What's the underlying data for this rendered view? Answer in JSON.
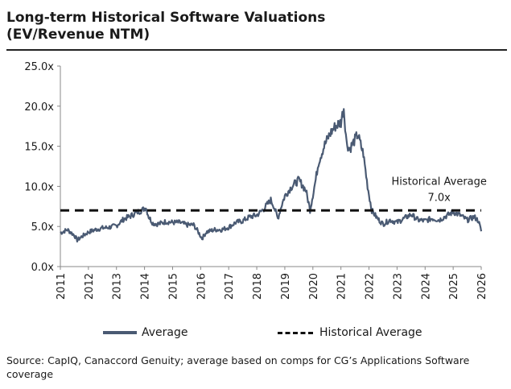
{
  "title_line1": "Long-term Historical Software Valuations",
  "title_line2": "(EV/Revenue NTM)",
  "source_text": "Source: CapIQ, Canaccord Genuity; average based on comps for CG’s Applications Software coverage",
  "chart_data": {
    "type": "line",
    "ylim": [
      0,
      25
    ],
    "xlim": [
      2011,
      2026
    ],
    "y_ticks": [
      {
        "value": 0,
        "label": "0.0x"
      },
      {
        "value": 5,
        "label": "5.0x"
      },
      {
        "value": 10,
        "label": "10.0x"
      },
      {
        "value": 15,
        "label": "15.0x"
      },
      {
        "value": 20,
        "label": "20.0x"
      },
      {
        "value": 25,
        "label": "25.0x"
      }
    ],
    "x_ticks": [
      "2011",
      "2012",
      "2013",
      "2014",
      "2015",
      "2016",
      "2017",
      "2018",
      "2019",
      "2020",
      "2021",
      "2022",
      "2023",
      "2024",
      "2025",
      "2026"
    ],
    "series": [
      {
        "name": "Average",
        "color": "#4a5a73",
        "x": [
          2011.0,
          2011.25,
          2011.5,
          2011.6,
          2011.75,
          2012.0,
          2012.25,
          2012.5,
          2012.75,
          2013.0,
          2013.25,
          2013.5,
          2013.75,
          2013.9,
          2014.05,
          2014.15,
          2014.3,
          2014.5,
          2014.75,
          2015.0,
          2015.25,
          2015.5,
          2015.75,
          2015.9,
          2016.05,
          2016.2,
          2016.5,
          2016.75,
          2017.0,
          2017.25,
          2017.5,
          2017.75,
          2018.0,
          2018.25,
          2018.5,
          2018.6,
          2018.75,
          2018.9,
          2019.0,
          2019.25,
          2019.5,
          2019.75,
          2019.9,
          2020.1,
          2020.2,
          2020.4,
          2020.6,
          2020.8,
          2021.0,
          2021.1,
          2021.2,
          2021.3,
          2021.45,
          2021.6,
          2021.8,
          2021.95,
          2022.1,
          2022.3,
          2022.5,
          2022.75,
          2023.0,
          2023.25,
          2023.5,
          2023.75,
          2024.0,
          2024.25,
          2024.5,
          2024.75,
          2025.0,
          2025.25,
          2025.5,
          2025.75,
          2025.9,
          2026.0
        ],
        "values": [
          4.2,
          4.6,
          3.9,
          3.3,
          3.7,
          4.3,
          4.6,
          4.8,
          4.9,
          5.1,
          5.9,
          6.3,
          6.8,
          7.0,
          7.4,
          6.2,
          5.4,
          5.3,
          5.6,
          5.5,
          5.5,
          5.2,
          5.2,
          4.4,
          3.5,
          4.3,
          4.6,
          4.6,
          4.9,
          5.5,
          5.7,
          6.2,
          6.4,
          7.2,
          8.3,
          7.6,
          6.0,
          7.8,
          8.8,
          10.0,
          10.8,
          9.5,
          7.1,
          10.8,
          13.0,
          15.0,
          16.5,
          17.5,
          18.0,
          19.8,
          15.5,
          14.6,
          15.5,
          16.5,
          14.0,
          10.0,
          7.0,
          6.0,
          5.3,
          5.8,
          5.5,
          6.0,
          6.5,
          5.8,
          5.7,
          6.0,
          5.8,
          6.3,
          6.8,
          6.4,
          5.8,
          6.2,
          5.7,
          4.4
        ]
      },
      {
        "name": "Historical Average",
        "color": "#111111",
        "x": [
          2011,
          2026
        ],
        "values": [
          7.0,
          7.0
        ]
      }
    ],
    "annotation": {
      "line1": "Historical Average",
      "line2": "7.0x",
      "x": 2024.5,
      "y": 7.0
    },
    "legend": [
      {
        "label": "Average",
        "style": "solid"
      },
      {
        "label": "Historical Average",
        "style": "dashed"
      }
    ],
    "grid": false,
    "legend_position": "bottom"
  }
}
